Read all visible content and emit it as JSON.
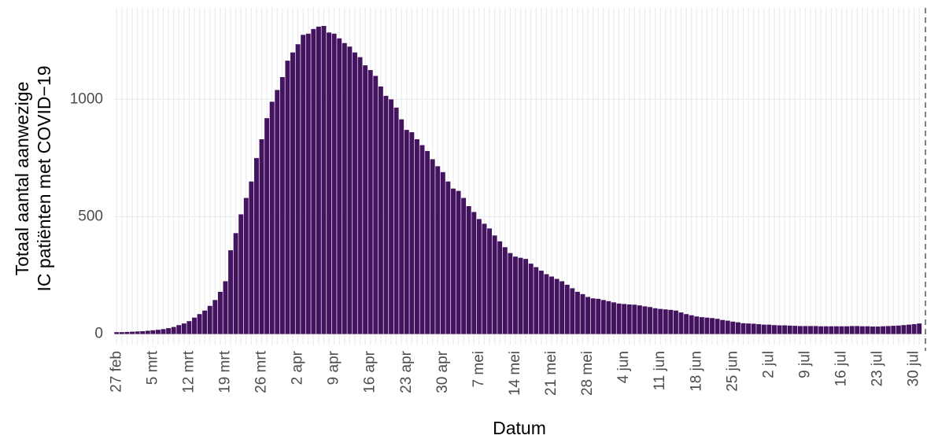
{
  "chart_data": {
    "type": "bar",
    "xlabel": "Datum",
    "ylabel": [
      "Totaal aantal aanwezige",
      "IC patiënten met COVID−19"
    ],
    "categories": [
      "27 feb",
      null,
      null,
      null,
      null,
      null,
      null,
      "5 mrt",
      null,
      null,
      null,
      null,
      null,
      null,
      "12 mrt",
      null,
      null,
      null,
      null,
      null,
      null,
      "19 mrt",
      null,
      null,
      null,
      null,
      null,
      null,
      "26 mrt",
      null,
      null,
      null,
      null,
      null,
      null,
      "2 apr",
      null,
      null,
      null,
      null,
      null,
      null,
      "9 apr",
      null,
      null,
      null,
      null,
      null,
      null,
      "16 apr",
      null,
      null,
      null,
      null,
      null,
      null,
      "23 apr",
      null,
      null,
      null,
      null,
      null,
      null,
      "30 apr",
      null,
      null,
      null,
      null,
      null,
      null,
      "7 mei",
      null,
      null,
      null,
      null,
      null,
      null,
      "14 mei",
      null,
      null,
      null,
      null,
      null,
      null,
      "21 mei",
      null,
      null,
      null,
      null,
      null,
      null,
      "28 mei",
      null,
      null,
      null,
      null,
      null,
      null,
      "4 jun",
      null,
      null,
      null,
      null,
      null,
      null,
      "11 jun",
      null,
      null,
      null,
      null,
      null,
      null,
      "18 jun",
      null,
      null,
      null,
      null,
      null,
      null,
      "25 jun",
      null,
      null,
      null,
      null,
      null,
      null,
      "2 jul",
      null,
      null,
      null,
      null,
      null,
      null,
      "9 jul",
      null,
      null,
      null,
      null,
      null,
      null,
      "16 jul",
      null,
      null,
      null,
      null,
      null,
      null,
      "23 jul",
      null,
      null,
      null,
      null,
      null,
      null,
      "30 jul",
      null
    ],
    "values": [
      8,
      8,
      9,
      10,
      11,
      12,
      14,
      16,
      18,
      21,
      25,
      30,
      38,
      45,
      55,
      70,
      85,
      100,
      120,
      145,
      180,
      225,
      357,
      430,
      510,
      580,
      650,
      750,
      830,
      920,
      990,
      1040,
      1095,
      1165,
      1200,
      1235,
      1275,
      1280,
      1300,
      1310,
      1313,
      1285,
      1280,
      1260,
      1240,
      1225,
      1200,
      1180,
      1145,
      1125,
      1100,
      1055,
      1015,
      1000,
      965,
      915,
      870,
      860,
      830,
      805,
      780,
      745,
      715,
      690,
      650,
      620,
      610,
      580,
      545,
      520,
      490,
      470,
      450,
      420,
      395,
      370,
      345,
      330,
      325,
      320,
      300,
      285,
      270,
      255,
      245,
      235,
      225,
      210,
      195,
      180,
      170,
      158,
      152,
      150,
      145,
      140,
      135,
      130,
      128,
      126,
      125,
      122,
      118,
      115,
      110,
      107,
      105,
      103,
      100,
      92,
      85,
      80,
      75,
      72,
      70,
      68,
      65,
      60,
      57,
      53,
      50,
      46,
      45,
      44,
      42,
      40,
      40,
      38,
      37,
      37,
      36,
      35,
      34,
      34,
      34,
      34,
      33,
      33,
      33,
      33,
      33,
      33,
      34,
      34,
      33,
      33,
      32,
      32,
      33,
      34,
      35,
      36,
      38,
      40,
      42,
      45
    ],
    "color": "#44135f",
    "ylim": [
      -45,
      1390
    ],
    "yticks": [
      0,
      500,
      1000
    ],
    "grid": true
  }
}
